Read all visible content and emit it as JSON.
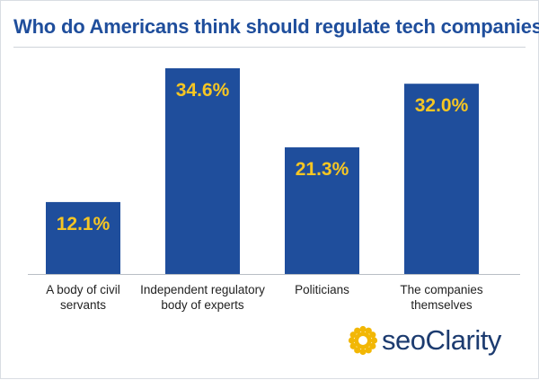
{
  "chart_data": {
    "type": "bar",
    "title": "Who do Americans think should regulate tech companies?",
    "xlabel": "",
    "ylabel": "",
    "categories": [
      [
        "A body of civil",
        "servants"
      ],
      [
        "Independent regulatory",
        "body of experts"
      ],
      [
        "Politicians"
      ],
      [
        "The companies",
        "themselves"
      ]
    ],
    "values": [
      12.1,
      34.6,
      21.3,
      32.0
    ],
    "value_labels": [
      "12.1%",
      "34.6%",
      "21.3%",
      "32.0%"
    ],
    "ylim": [
      0,
      34.6
    ],
    "grid": false,
    "legend": "none",
    "bar_color": "#1f4e9c",
    "label_color": "#f6c623"
  },
  "brand": {
    "logo_text": "seoClarity",
    "logo_color": "#1c3b6f",
    "mark_color": "#f2b705"
  }
}
